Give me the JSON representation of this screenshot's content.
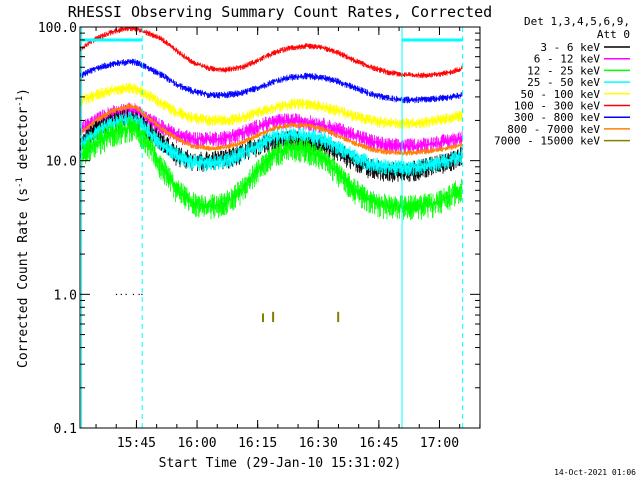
{
  "chart_data": {
    "type": "line",
    "title": "RHESSI Observing Summary Count Rates, Corrected",
    "xlabel": "Start Time (29-Jan-10 15:31:02)",
    "ylabel_main": "Corrected Count Rate (s",
    "ylabel_sup1": "-1",
    "ylabel_mid": " detector",
    "ylabel_sup2": "-1",
    "ylabel_end": ")",
    "yscale": "log",
    "ylim": [
      0.1,
      100.0
    ],
    "xlim_minutes": [
      0,
      99
    ],
    "x_ticks": [
      {
        "label": "15:45",
        "minute": 13.97
      },
      {
        "label": "16:00",
        "minute": 28.97
      },
      {
        "label": "16:15",
        "minute": 43.97
      },
      {
        "label": "16:30",
        "minute": 58.97
      },
      {
        "label": "16:45",
        "minute": 73.97
      },
      {
        "label": "17:00",
        "minute": 88.97
      }
    ],
    "y_ticks": [
      {
        "label": "0.1",
        "value": 0.1
      },
      {
        "label": "1.0",
        "value": 1.0
      },
      {
        "label": "10.0",
        "value": 10.0
      },
      {
        "label": "100.0",
        "value": 100.0
      }
    ],
    "legend": {
      "header_line1": "Det 1,3,4,5,6,9,",
      "header_line2": "Att 0",
      "placement": "right"
    },
    "series": [
      {
        "name": "3 - 6 keV",
        "color": "#000000",
        "x": [
          0,
          4,
          8,
          12,
          14,
          16,
          20,
          24,
          28,
          32,
          36,
          40,
          44,
          48,
          52,
          56,
          60,
          64,
          68,
          72,
          76,
          80,
          84,
          88,
          92,
          95,
          98
        ],
        "y": [
          14,
          17,
          20,
          21,
          20,
          18,
          14,
          11,
          10,
          10,
          10.3,
          11.5,
          13,
          14,
          14.5,
          14,
          13,
          11.5,
          10,
          8.8,
          8.3,
          8.3,
          8.6,
          9.3,
          10.2,
          11,
          12
        ]
      },
      {
        "name": "6 - 12 keV",
        "color": "#ff00ff",
        "x": [
          0,
          4,
          8,
          12,
          14,
          16,
          20,
          24,
          28,
          32,
          36,
          40,
          44,
          48,
          52,
          56,
          60,
          64,
          68,
          72,
          76,
          80,
          84,
          88,
          92,
          95,
          98
        ],
        "y": [
          17,
          20,
          23,
          24,
          23.5,
          21,
          18,
          15.5,
          14.5,
          14.5,
          14.8,
          16,
          18,
          19.5,
          20,
          19.5,
          18.5,
          17,
          15.5,
          14,
          13,
          12.8,
          13,
          13.5,
          14.2,
          14.8,
          15.5
        ]
      },
      {
        "name": "12 - 25 keV",
        "color": "#00ff00",
        "x": [
          0,
          4,
          8,
          12,
          14,
          16,
          20,
          24,
          28,
          32,
          36,
          40,
          44,
          48,
          52,
          56,
          60,
          64,
          68,
          72,
          76,
          80,
          84,
          88,
          92,
          95,
          98
        ],
        "y": [
          11,
          13.5,
          16,
          17.5,
          17,
          14.5,
          9,
          6,
          4.8,
          4.6,
          4.8,
          6,
          8.5,
          11,
          12.5,
          12,
          10.5,
          8,
          6,
          5,
          4.6,
          4.5,
          4.6,
          4.8,
          5.5,
          6.5,
          7.5
        ]
      },
      {
        "name": "25 - 50 keV",
        "color": "#00ffff",
        "x": [
          0,
          4,
          8,
          12,
          14,
          16,
          20,
          24,
          28,
          32,
          36,
          40,
          44,
          48,
          52,
          56,
          60,
          64,
          68,
          72,
          76,
          80,
          84,
          88,
          92,
          95,
          98
        ],
        "y": [
          13,
          16,
          19,
          20.5,
          20,
          17.5,
          13.5,
          11,
          9.8,
          9.6,
          10,
          11.2,
          13,
          15,
          16,
          15.5,
          14.5,
          12.5,
          10.8,
          9.5,
          9,
          8.8,
          9,
          9.5,
          10.3,
          11,
          11.5
        ]
      },
      {
        "name": "50 - 100 keV",
        "color": "#ffff00",
        "x": [
          0,
          4,
          8,
          12,
          14,
          16,
          20,
          24,
          28,
          32,
          36,
          40,
          44,
          48,
          52,
          56,
          60,
          64,
          68,
          72,
          76,
          80,
          84,
          88,
          92,
          95,
          98
        ],
        "y": [
          28,
          31,
          34,
          35,
          34.5,
          32,
          27,
          23,
          21,
          20,
          20,
          21,
          23,
          25,
          26.5,
          26.5,
          25.5,
          23.5,
          21.5,
          20,
          19.2,
          19,
          19.2,
          20,
          21,
          22,
          23
        ]
      },
      {
        "name": "100 - 300 keV",
        "color": "#ff0000",
        "x": [
          0,
          4,
          8,
          12,
          14,
          16,
          20,
          24,
          28,
          32,
          36,
          40,
          44,
          48,
          52,
          56,
          60,
          64,
          68,
          72,
          76,
          80,
          84,
          88,
          92,
          95,
          98
        ],
        "y": [
          68,
          82,
          92,
          98,
          97,
          92,
          82,
          66,
          54,
          49,
          48,
          50,
          56,
          64,
          70,
          72,
          70,
          64,
          56,
          50,
          46,
          44,
          43.5,
          44,
          46,
          50,
          54
        ]
      },
      {
        "name": "300 - 800 keV",
        "color": "#0000ff",
        "x": [
          0,
          4,
          8,
          12,
          14,
          16,
          20,
          24,
          28,
          32,
          36,
          40,
          44,
          48,
          52,
          56,
          60,
          64,
          68,
          72,
          76,
          80,
          84,
          88,
          92,
          95,
          98
        ],
        "y": [
          43,
          49,
          53,
          55,
          54.5,
          51,
          44,
          37,
          33,
          31,
          31,
          32,
          35,
          39,
          42,
          43,
          42,
          39,
          35,
          31.5,
          29.5,
          28.5,
          28.5,
          29,
          30,
          31,
          32
        ]
      },
      {
        "name": "800 - 7000 keV",
        "color": "#ff8000",
        "x": [
          0,
          4,
          8,
          12,
          14,
          16,
          20,
          24,
          28,
          32,
          36,
          40,
          44,
          48,
          52,
          56,
          60,
          64,
          68,
          72,
          76,
          80,
          84,
          88,
          92,
          95,
          98
        ],
        "y": [
          16,
          20,
          23.5,
          25.5,
          25,
          22,
          17.5,
          14.5,
          12.8,
          12.4,
          12.6,
          13.6,
          15.5,
          17.5,
          18.5,
          18.3,
          17.3,
          15.3,
          13.5,
          12.2,
          11.6,
          11.4,
          11.6,
          12,
          12.6,
          13.2,
          13.8
        ]
      },
      {
        "name": "7000 - 15000 keV",
        "color": "#808000",
        "x": [],
        "y": []
      }
    ],
    "sparse_points": [
      {
        "series": "3 - 6 keV",
        "x": 9.0,
        "y": 1.0
      },
      {
        "series": "3 - 6 keV",
        "x": 10.2,
        "y": 1.0
      },
      {
        "series": "3 - 6 keV",
        "x": 11.4,
        "y": 1.0
      },
      {
        "series": "3 - 6 keV",
        "x": 13.2,
        "y": 1.0
      },
      {
        "series": "3 - 6 keV",
        "x": 14.6,
        "y": 1.0
      },
      {
        "series": "3 - 6 keV",
        "x": 15.3,
        "y": 1.0
      }
    ],
    "spikes": [
      {
        "series": "7000 - 15000 keV",
        "x": 45.3,
        "y_low": 0.62,
        "y_high": 0.72
      },
      {
        "series": "7000 - 15000 keV",
        "x": 47.8,
        "y_low": 0.62,
        "y_high": 0.74
      },
      {
        "series": "7000 - 15000 keV",
        "x": 63.9,
        "y_low": 0.62,
        "y_high": 0.74
      }
    ],
    "period_bars": [
      {
        "x_start": 0.4,
        "x_end": 15.4,
        "value": 80,
        "color": "#00ffff"
      },
      {
        "x_start": 79.7,
        "x_end": 94.7,
        "value": 80,
        "color": "#00ffff"
      }
    ],
    "vlines": [
      {
        "x": 0.4,
        "style": "solid",
        "color": "#00ffff"
      },
      {
        "x": 15.4,
        "style": "dashed",
        "color": "#00ffff"
      },
      {
        "x": 79.7,
        "style": "solid",
        "color": "#00ffff"
      },
      {
        "x": 94.7,
        "style": "dashed",
        "color": "#00ffff"
      }
    ]
  },
  "footer": {
    "timestamp": "14-Oct-2021 01:06"
  }
}
